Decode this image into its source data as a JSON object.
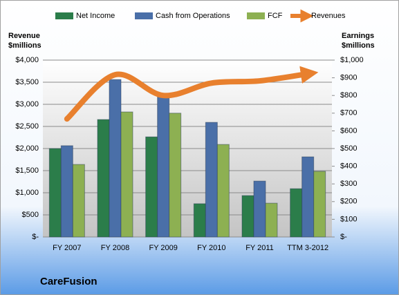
{
  "chart_data": {
    "type": "bar",
    "title": "CareFusion",
    "ylabel": [
      "Revenue",
      "$millions"
    ],
    "y2label": [
      "Earnings",
      "$millions"
    ],
    "categories": [
      "FY 2007",
      "FY 2008",
      "FY 2009",
      "FY 2010",
      "FY 2011",
      "TTM 3-2012"
    ],
    "series": [
      {
        "name": "Net Income",
        "color": "#2b7d4a",
        "axis": "y2",
        "values": [
          500,
          664,
          566,
          188,
          234,
          273
        ]
      },
      {
        "name": "Cash from Operations",
        "color": "#4a6fa8",
        "axis": "y2",
        "values": [
          516,
          890,
          800,
          648,
          316,
          453
        ]
      },
      {
        "name": "FCF",
        "color": "#8db052",
        "axis": "y2",
        "values": [
          410,
          707,
          700,
          523,
          191,
          371
        ]
      },
      {
        "name": "Revenues",
        "color": "#e8802e",
        "axis": "y",
        "type": "line",
        "values": [
          2670,
          3670,
          3200,
          3480,
          3530,
          3690
        ]
      }
    ],
    "ylim": [
      0,
      4000
    ],
    "yticks": [
      {
        "value": 0,
        "label": "$-"
      },
      {
        "value": 500,
        "label": "$500"
      },
      {
        "value": 1000,
        "label": "$1,000"
      },
      {
        "value": 1500,
        "label": "$1,500"
      },
      {
        "value": 2000,
        "label": "$2,000"
      },
      {
        "value": 2500,
        "label": "$2,500"
      },
      {
        "value": 3000,
        "label": "$3,000"
      },
      {
        "value": 3500,
        "label": "$3,500"
      },
      {
        "value": 4000,
        "label": "$4,000"
      }
    ],
    "y2lim": [
      0,
      1000
    ],
    "y2ticks": [
      {
        "value": 0,
        "label": "$-"
      },
      {
        "value": 100,
        "label": "$100"
      },
      {
        "value": 200,
        "label": "$200"
      },
      {
        "value": 300,
        "label": "$300"
      },
      {
        "value": 400,
        "label": "$400"
      },
      {
        "value": 500,
        "label": "$500"
      },
      {
        "value": 600,
        "label": "$600"
      },
      {
        "value": 700,
        "label": "$700"
      },
      {
        "value": 800,
        "label": "$800"
      },
      {
        "value": 900,
        "label": "$900"
      },
      {
        "value": 1000,
        "label": "$1,000"
      }
    ],
    "grid": true
  }
}
